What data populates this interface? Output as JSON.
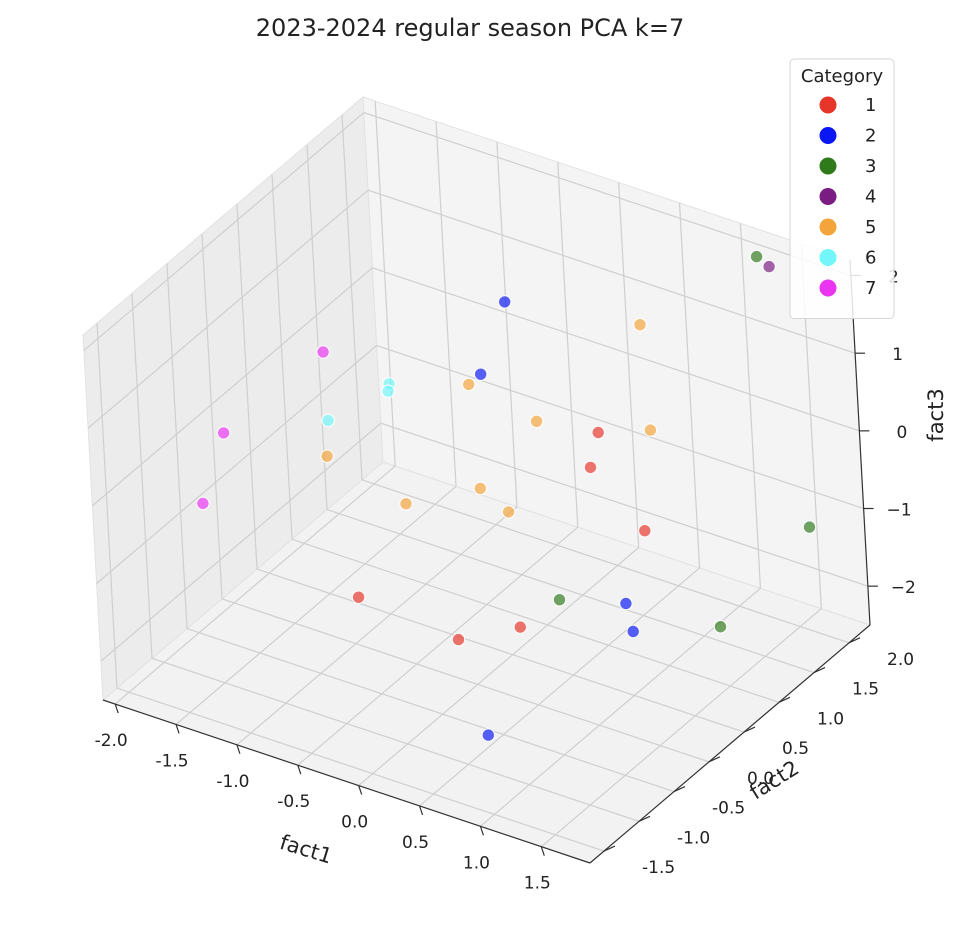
{
  "chart_data": {
    "type": "scatter",
    "title": "2023-2024 regular season PCA k=7",
    "xlabel": "fact1",
    "ylabel": "fact2",
    "zlabel": "fact3",
    "x_ticks": [
      "-2.0",
      "-1.5",
      "-1.0",
      "-0.5",
      "0.0",
      "0.5",
      "1.0",
      "1.5"
    ],
    "y_ticks": [
      "-1.5",
      "-1.0",
      "-0.5",
      "0.0",
      "0.5",
      "1.0",
      "1.5",
      "2.0"
    ],
    "z_ticks": [
      "-2",
      "-1",
      "0",
      "1",
      "2"
    ],
    "xlim": [
      -2.1,
      1.9
    ],
    "ylim": [
      -1.7,
      2.3
    ],
    "zlim": [
      -2.5,
      2.2
    ],
    "grid": true,
    "legend": {
      "title": "Category",
      "placement": "top-right",
      "entries": [
        {
          "label": "1",
          "color": "#e8352a"
        },
        {
          "label": "2",
          "color": "#0a17f5"
        },
        {
          "label": "3",
          "color": "#2f7b1c"
        },
        {
          "label": "4",
          "color": "#7a1c82"
        },
        {
          "label": "5",
          "color": "#f3a43a"
        },
        {
          "label": "6",
          "color": "#72f6f9"
        },
        {
          "label": "7",
          "color": "#eb34f2"
        }
      ]
    },
    "series": [
      {
        "name": "1",
        "color": "#e8352a",
        "points": [
          [
            0.75,
            0.61,
            0.67
          ],
          [
            0.89,
            0.25,
            0.57
          ],
          [
            1.26,
            0.34,
            -0.12
          ],
          [
            -0.27,
            -1.12,
            -0.66
          ],
          [
            0.32,
            -0.75,
            -1.18
          ],
          [
            0.53,
            -0.24,
            -1.3
          ]
        ]
      },
      {
        "name": "2",
        "color": "#0a17f5",
        "points": [
          [
            -0.69,
            1.78,
            0.7
          ],
          [
            -0.2,
            0.6,
            0.93
          ],
          [
            1.4,
            -0.2,
            -0.57
          ],
          [
            0.82,
            -1.23,
            -1.78
          ],
          [
            1.84,
            -0.84,
            -0.21
          ]
        ]
      },
      {
        "name": "3",
        "color": "#2f7b1c",
        "points": [
          [
            1.23,
            2.12,
            2.03
          ],
          [
            1.8,
            1.71,
            -0.84
          ],
          [
            1.69,
            0.6,
            -1.33
          ],
          [
            0.65,
            0.12,
            -1.16
          ]
        ]
      },
      {
        "name": "4",
        "color": "#7a1c82",
        "points": [
          [
            1.3,
            2.17,
            1.9
          ]
        ]
      },
      {
        "name": "5",
        "color": "#f3a43a",
        "points": [
          [
            0.61,
            1.49,
            1.31
          ],
          [
            0.9,
            1.08,
            0.42
          ],
          [
            -0.33,
            0.64,
            0.7
          ],
          [
            0.05,
            0.92,
            0.21
          ],
          [
            -1.1,
            -0.09,
            -0.07
          ],
          [
            0.02,
            0.15,
            -0.08
          ],
          [
            0.35,
            -0.02,
            -0.08
          ],
          [
            -0.48,
            -0.06,
            -0.38
          ]
        ]
      },
      {
        "name": "6",
        "color": "#72f6f9",
        "points": [
          [
            -0.91,
            0.5,
            0.51
          ],
          [
            -1.27,
            1.07,
            -0.21
          ],
          [
            -1.1,
            -0.05,
            0.36
          ]
        ]
      },
      {
        "name": "7",
        "color": "#eb34f2",
        "points": [
          [
            -1.9,
            -0.18,
            -0.12
          ],
          [
            -1.57,
            0.7,
            0.42
          ],
          [
            -1.37,
            -1.38,
            0.17
          ]
        ]
      }
    ]
  }
}
